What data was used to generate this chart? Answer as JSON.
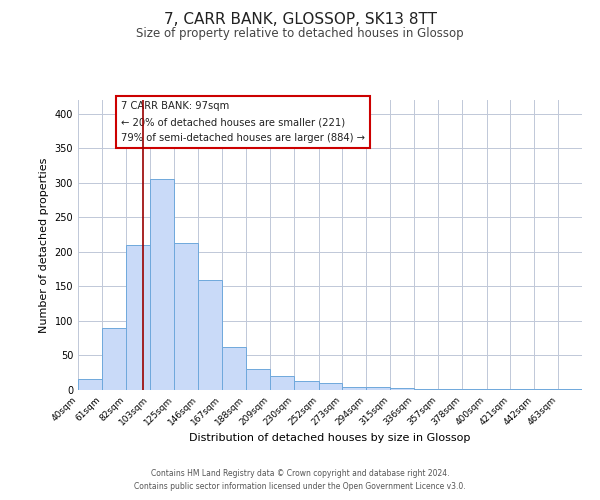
{
  "title": "7, CARR BANK, GLOSSOP, SK13 8TT",
  "subtitle": "Size of property relative to detached houses in Glossop",
  "xlabel": "Distribution of detached houses by size in Glossop",
  "ylabel": "Number of detached properties",
  "bar_values": [
    16,
    90,
    210,
    305,
    213,
    160,
    63,
    30,
    20,
    13,
    10,
    5,
    5,
    3,
    2,
    2,
    2,
    2,
    2,
    2,
    2
  ],
  "bin_edges": [
    40,
    61,
    82,
    103,
    125,
    146,
    167,
    188,
    209,
    230,
    252,
    273,
    294,
    315,
    336,
    357,
    378,
    400,
    421,
    442,
    463,
    484
  ],
  "tick_labels": [
    "40sqm",
    "61sqm",
    "82sqm",
    "103sqm",
    "125sqm",
    "146sqm",
    "167sqm",
    "188sqm",
    "209sqm",
    "230sqm",
    "252sqm",
    "273sqm",
    "294sqm",
    "315sqm",
    "336sqm",
    "357sqm",
    "378sqm",
    "400sqm",
    "421sqm",
    "442sqm",
    "463sqm"
  ],
  "bar_color": "#c9daf8",
  "bar_edge_color": "#6fa8dc",
  "vline_x": 97,
  "vline_color": "#990000",
  "ylim": [
    0,
    420
  ],
  "yticks": [
    0,
    50,
    100,
    150,
    200,
    250,
    300,
    350,
    400
  ],
  "annotation_title": "7 CARR BANK: 97sqm",
  "annotation_line1": "← 20% of detached houses are smaller (221)",
  "annotation_line2": "79% of semi-detached houses are larger (884) →",
  "box_edge_color": "#cc0000",
  "footer_line1": "Contains HM Land Registry data © Crown copyright and database right 2024.",
  "footer_line2": "Contains public sector information licensed under the Open Government Licence v3.0.",
  "background_color": "#ffffff",
  "grid_color": "#c0c8d8"
}
